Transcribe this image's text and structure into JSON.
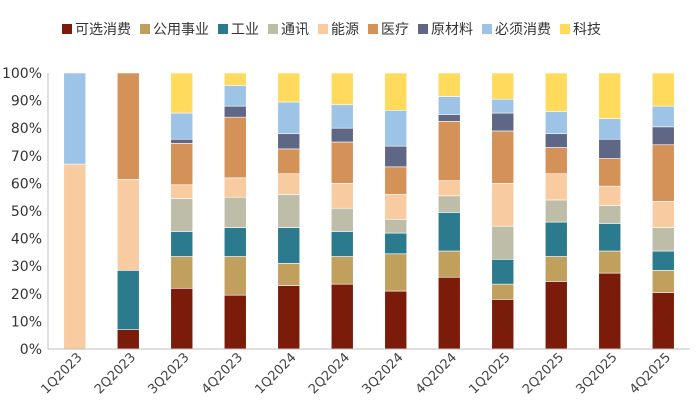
{
  "chart_data": {
    "type": "bar",
    "stacked": true,
    "title": "",
    "xlabel": "",
    "ylabel": "",
    "ylim": [
      0,
      100
    ],
    "yticks": [
      "0%",
      "10%",
      "20%",
      "30%",
      "40%",
      "50%",
      "60%",
      "70%",
      "80%",
      "90%",
      "100%"
    ],
    "grid": false,
    "legend_position": "top",
    "categories": [
      "1Q2023",
      "2Q2023",
      "3Q2023",
      "4Q2023",
      "1Q2024",
      "2Q2024",
      "3Q2024",
      "4Q2024",
      "1Q2025",
      "2Q2025",
      "3Q2025",
      "4Q2025"
    ],
    "series": [
      {
        "name": "可选消费",
        "color": "#7B1C0A",
        "values": [
          0,
          7,
          22,
          19.5,
          23,
          23.5,
          21,
          26,
          18,
          24.5,
          27.5,
          20.5
        ]
      },
      {
        "name": "公用事业",
        "color": "#C1A05E",
        "values": [
          0,
          0,
          11.5,
          14,
          8,
          10,
          13.5,
          9.5,
          5.5,
          9,
          8,
          8
        ]
      },
      {
        "name": "工业",
        "color": "#2C7A8E",
        "values": [
          0,
          21.5,
          9,
          10.5,
          13,
          9,
          7.5,
          14,
          9,
          12.5,
          10,
          7
        ]
      },
      {
        "name": "通讯",
        "color": "#BDBDA8",
        "values": [
          0,
          0,
          12,
          11,
          12,
          8.5,
          5,
          6,
          12,
          8,
          6.5,
          8.5
        ]
      },
      {
        "name": "能源",
        "color": "#F9CBA1",
        "values": [
          67,
          33,
          5,
          7,
          7.5,
          9,
          9,
          5.5,
          15.5,
          9.5,
          7,
          9.5
        ]
      },
      {
        "name": "医疗",
        "color": "#D49158",
        "values": [
          0,
          38.5,
          15,
          22,
          9,
          15,
          10,
          21.5,
          19,
          9.5,
          10,
          20.5
        ]
      },
      {
        "name": "原材料",
        "color": "#5F6786",
        "values": [
          0,
          0,
          1.5,
          4,
          5.5,
          5,
          7.5,
          2.5,
          6.5,
          5,
          7,
          6.5
        ]
      },
      {
        "name": "必须消费",
        "color": "#9DC3E6",
        "values": [
          33,
          0,
          9.5,
          7.5,
          11.5,
          8.5,
          13,
          6.5,
          5,
          8,
          7.5,
          7.5
        ]
      },
      {
        "name": "科技",
        "color": "#FFDA5C",
        "values": [
          0,
          0,
          14.5,
          4.5,
          10.5,
          11.5,
          13.5,
          8.5,
          9.5,
          14,
          16.5,
          12
        ]
      }
    ]
  }
}
